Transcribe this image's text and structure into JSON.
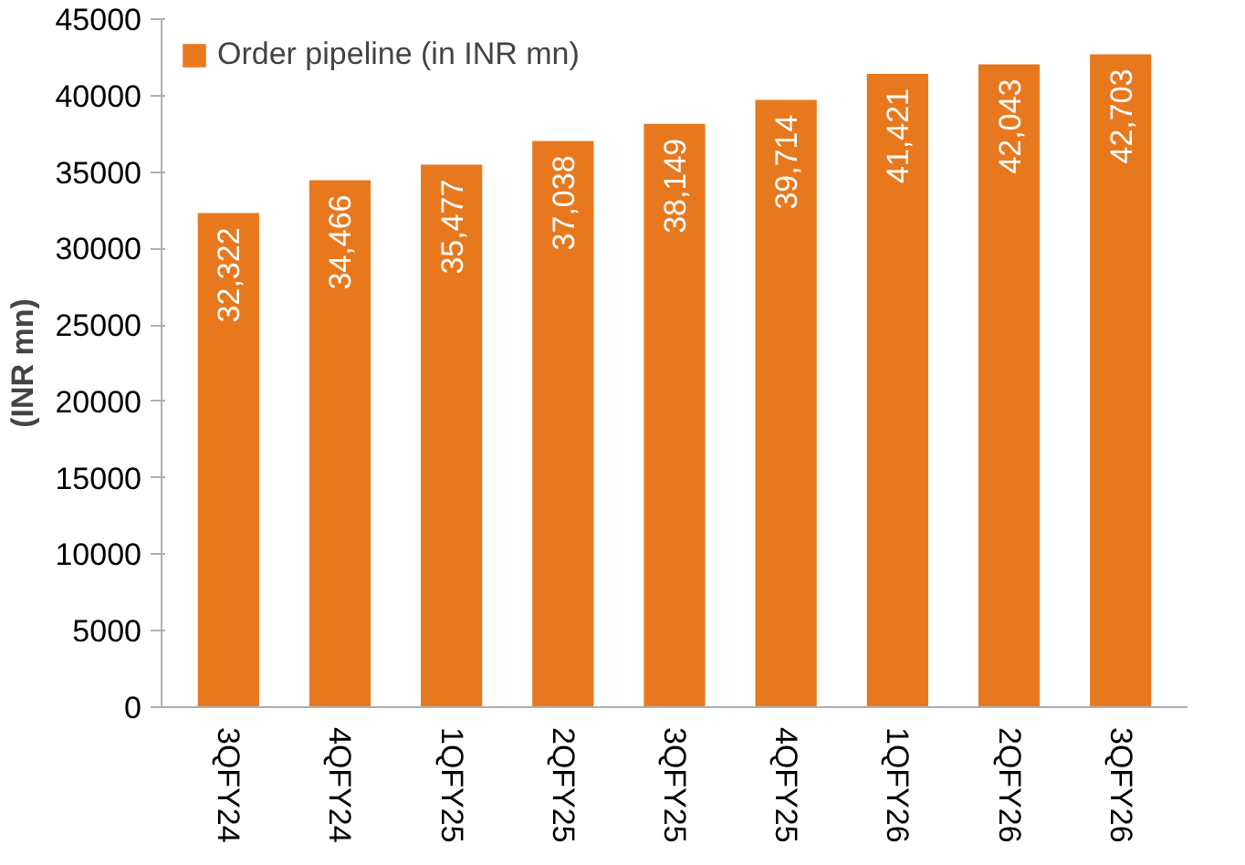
{
  "chart_data": {
    "type": "bar",
    "ylabel": "(INR mn)",
    "categories": [
      "3QFY24",
      "4QFY24",
      "1QFY25",
      "2QFY25",
      "3QFY25",
      "4QFY25",
      "1QFY26",
      "2QFY26",
      "3QFY26"
    ],
    "series": [
      {
        "name": "Order pipeline (in INR mn)",
        "color": "#e8781e",
        "values": [
          32322,
          34466,
          35477,
          37038,
          38149,
          39714,
          41421,
          42043,
          42703
        ],
        "value_labels": [
          "32,322",
          "34,466",
          "35,477",
          "37,038",
          "38,149",
          "39,714",
          "41,421",
          "42,043",
          "42,703"
        ]
      }
    ],
    "ylim": [
      0,
      45000
    ],
    "yticks": [
      0,
      5000,
      10000,
      15000,
      20000,
      25000,
      30000,
      35000,
      40000,
      45000
    ],
    "grid": false,
    "legend": "top"
  }
}
